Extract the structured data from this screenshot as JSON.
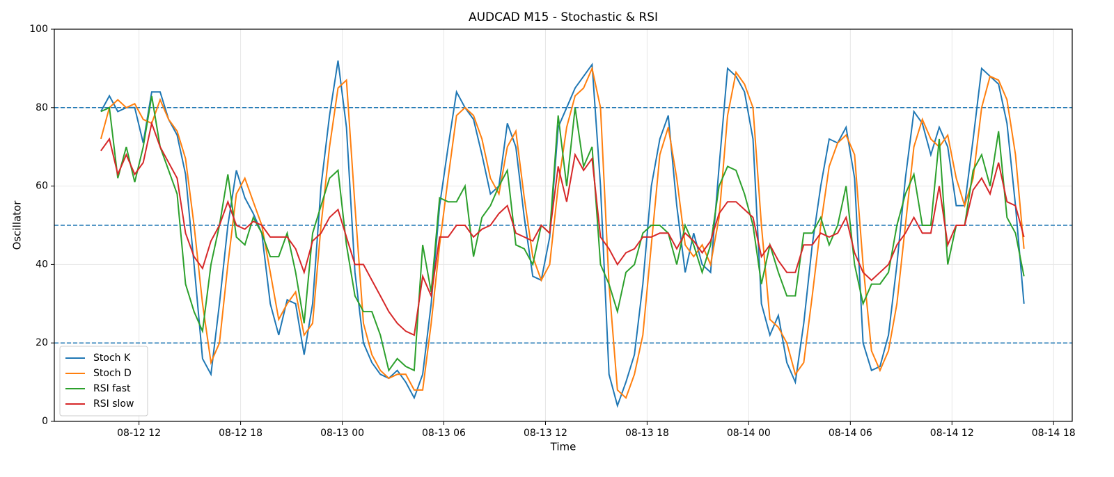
{
  "chart_data": {
    "type": "line",
    "title": "AUDCAD M15 - Stochastic & RSI",
    "x_label": "Time",
    "y_label": "Oscillator",
    "x": [
      9.75,
      10.25,
      10.75,
      11.25,
      11.75,
      12.25,
      12.75,
      13.25,
      13.75,
      14.25,
      14.75,
      15.25,
      15.75,
      16.25,
      16.75,
      17.25,
      17.75,
      18.25,
      18.75,
      19.25,
      19.75,
      20.25,
      20.75,
      21.25,
      21.75,
      22.25,
      22.75,
      23.25,
      23.75,
      24.25,
      24.75,
      25.25,
      25.75,
      26.25,
      26.75,
      27.25,
      27.75,
      28.25,
      28.75,
      29.25,
      29.75,
      30.25,
      30.75,
      31.25,
      31.75,
      32.25,
      32.75,
      33.25,
      33.75,
      34.25,
      34.75,
      35.25,
      35.75,
      36.25,
      36.75,
      37.25,
      37.75,
      38.25,
      38.75,
      39.25,
      39.75,
      40.25,
      40.75,
      41.25,
      41.75,
      42.25,
      42.75,
      43.25,
      43.75,
      44.25,
      44.75,
      45.25,
      45.75,
      46.25,
      46.75,
      47.25,
      47.75,
      48.25,
      48.75,
      49.25,
      49.75,
      50.25,
      50.75,
      51.25,
      51.75,
      52.25,
      52.75,
      53.25,
      53.75,
      54.25,
      54.75,
      55.25,
      55.75,
      56.25,
      56.75,
      57.25,
      57.75,
      58.25,
      58.75,
      59.25,
      59.75,
      60.25,
      60.75,
      61.25,
      61.75,
      62.25,
      62.75,
      63.25,
      63.75,
      64.25
    ],
    "series": [
      {
        "name": "Stoch K",
        "color": "#1f77b4",
        "values": [
          79,
          83,
          79,
          80,
          80,
          71,
          84,
          84,
          77,
          73,
          63,
          40,
          16,
          12,
          30,
          50,
          64,
          57,
          53,
          48,
          30,
          22,
          31,
          30,
          17,
          30,
          60,
          78,
          92,
          75,
          38,
          20,
          15,
          12,
          11,
          13,
          10,
          6,
          12,
          30,
          55,
          70,
          84,
          80,
          77,
          68,
          58,
          60,
          76,
          70,
          52,
          37,
          36,
          47,
          75,
          80,
          85,
          88,
          91,
          60,
          12,
          4,
          10,
          17,
          35,
          60,
          72,
          78,
          55,
          38,
          48,
          40,
          38,
          65,
          90,
          88,
          84,
          72,
          30,
          22,
          27,
          15,
          10,
          25,
          45,
          60,
          72,
          71,
          75,
          62,
          20,
          13,
          14,
          22,
          40,
          62,
          79,
          76,
          68,
          75,
          70,
          55,
          55,
          72,
          90,
          88,
          86,
          76,
          55,
          30
        ]
      },
      {
        "name": "Stoch D",
        "color": "#ff7f0e",
        "values": [
          72,
          80,
          82,
          80,
          81,
          77,
          76,
          82,
          77,
          74,
          67,
          50,
          30,
          15,
          20,
          40,
          58,
          62,
          56,
          50,
          38,
          26,
          30,
          33,
          22,
          25,
          50,
          70,
          85,
          87,
          55,
          25,
          17,
          13,
          11,
          12,
          12,
          8,
          8,
          25,
          45,
          62,
          78,
          80,
          78,
          72,
          62,
          58,
          70,
          74,
          57,
          42,
          36,
          40,
          60,
          75,
          83,
          85,
          90,
          80,
          35,
          8,
          6,
          12,
          22,
          45,
          68,
          75,
          62,
          45,
          42,
          45,
          40,
          52,
          78,
          89,
          86,
          80,
          50,
          26,
          24,
          20,
          12,
          15,
          32,
          50,
          65,
          71,
          73,
          68,
          40,
          18,
          13,
          18,
          30,
          50,
          70,
          77,
          72,
          70,
          73,
          62,
          55,
          62,
          80,
          88,
          87,
          82,
          68,
          44
        ]
      },
      {
        "name": "RSI fast",
        "color": "#2ca02c",
        "values": [
          79,
          80,
          62,
          70,
          61,
          70,
          83,
          70,
          64,
          58,
          35,
          28,
          23,
          40,
          50,
          63,
          47,
          45,
          52,
          48,
          42,
          42,
          48,
          38,
          25,
          48,
          55,
          62,
          64,
          45,
          32,
          28,
          28,
          22,
          13,
          16,
          14,
          13,
          45,
          33,
          57,
          56,
          56,
          60,
          42,
          52,
          55,
          60,
          64,
          45,
          44,
          40,
          50,
          48,
          78,
          60,
          80,
          65,
          70,
          40,
          35,
          28,
          38,
          40,
          48,
          50,
          50,
          48,
          40,
          50,
          45,
          38,
          45,
          60,
          65,
          64,
          58,
          50,
          35,
          45,
          38,
          32,
          32,
          48,
          48,
          52,
          45,
          50,
          60,
          40,
          30,
          35,
          35,
          38,
          50,
          58,
          63,
          50,
          50,
          72,
          40,
          50,
          50,
          64,
          68,
          60,
          74,
          52,
          48,
          37
        ]
      },
      {
        "name": "RSI slow",
        "color": "#d62728",
        "values": [
          69,
          72,
          63,
          68,
          63,
          66,
          76,
          70,
          66,
          62,
          48,
          42,
          39,
          46,
          50,
          56,
          50,
          49,
          51,
          50,
          47,
          47,
          47,
          44,
          38,
          46,
          48,
          52,
          54,
          47,
          40,
          40,
          36,
          32,
          28,
          25,
          23,
          22,
          37,
          32,
          47,
          47,
          50,
          50,
          47,
          49,
          50,
          53,
          55,
          48,
          47,
          46,
          50,
          48,
          65,
          56,
          68,
          64,
          67,
          47,
          44,
          40,
          43,
          44,
          47,
          47,
          48,
          48,
          44,
          48,
          46,
          43,
          46,
          53,
          56,
          56,
          54,
          52,
          42,
          45,
          41,
          38,
          38,
          45,
          45,
          48,
          47,
          48,
          52,
          43,
          38,
          36,
          38,
          40,
          45,
          48,
          52,
          48,
          48,
          60,
          45,
          50,
          50,
          59,
          62,
          58,
          66,
          56,
          55,
          47
        ]
      }
    ],
    "xlim": [
      7,
      67.1
    ],
    "ylim": [
      0,
      100
    ],
    "xticks": [
      {
        "value": 12,
        "label": "08-12 12"
      },
      {
        "value": 18,
        "label": "08-12 18"
      },
      {
        "value": 24,
        "label": "08-13 00"
      },
      {
        "value": 30,
        "label": "08-13 06"
      },
      {
        "value": 36,
        "label": "08-13 12"
      },
      {
        "value": 42,
        "label": "08-13 18"
      },
      {
        "value": 48,
        "label": "08-14 00"
      },
      {
        "value": 54,
        "label": "08-14 06"
      },
      {
        "value": 60,
        "label": "08-14 12"
      },
      {
        "value": 66,
        "label": "08-14 18"
      }
    ],
    "yticks": [
      0,
      20,
      40,
      60,
      80,
      100
    ],
    "hlines": [
      20,
      50,
      80
    ],
    "hline_color": "#1f77b4",
    "grid": true,
    "legend": "lower left"
  }
}
